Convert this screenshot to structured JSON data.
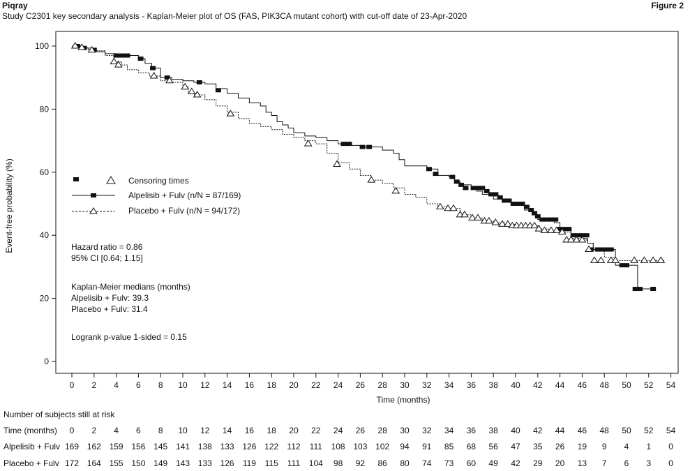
{
  "header": {
    "product": "Piqray",
    "subtitle": "Study C2301 key secondary analysis - Kaplan-Meier plot of OS (FAS, PIK3CA mutant cohort) with cut-off date of 23-Apr-2020",
    "figure_label": "Figure 2"
  },
  "chart_data": {
    "type": "line",
    "title": "",
    "xlabel": "Time (months)",
    "ylabel": "Event-free probability (%)",
    "xlim": [
      0,
      54
    ],
    "ylim": [
      0,
      100
    ],
    "x_ticks": [
      "0",
      "2",
      "4",
      "6",
      "8",
      "10",
      "12",
      "14",
      "16",
      "18",
      "20",
      "22",
      "24",
      "26",
      "28",
      "30",
      "32",
      "34",
      "36",
      "38",
      "40",
      "42",
      "44",
      "46",
      "48",
      "50",
      "52",
      "54"
    ],
    "y_ticks": [
      "0",
      "20",
      "40",
      "60",
      "80",
      "100"
    ],
    "legend": {
      "position": "left",
      "censor_label": "Censoring times",
      "entries": [
        "Alpelisib + Fulv (n/N = 87/169)",
        "Placebo + Fulv (n/N = 94/172)"
      ]
    },
    "annotations": {
      "hr": "Hazard ratio = 0.86",
      "ci": "95% CI [0.64; 1.15]",
      "median_title": "Kaplan-Meier medians (months)",
      "median_alp": "Alpelisib + Fulv: 39.3",
      "median_pla": "Placebo + Fulv: 31.4",
      "logrank": "Logrank p-value 1-sided = 0.15"
    },
    "series": [
      {
        "name": "Alpelisib + Fulv (n/N = 87/169)",
        "style": "solid",
        "marker": "filled-square",
        "x": [
          0,
          0.4,
          1.0,
          1.5,
          2.2,
          3.0,
          4.0,
          5.5,
          6.0,
          6.6,
          7.2,
          8.0,
          9.0,
          10.0,
          11.0,
          12.0,
          13.0,
          14.0,
          15.0,
          16.0,
          17.0,
          17.5,
          18.0,
          18.5,
          19.0,
          19.5,
          20.0,
          21.0,
          22.0,
          23.0,
          24.0,
          25.0,
          26.0,
          27.0,
          28.0,
          29.0,
          29.5,
          30.0,
          31.0,
          32.0,
          33.0,
          34.0,
          34.5,
          35.0,
          36.0,
          36.5,
          37.0,
          38.0,
          39.0,
          40.0,
          40.8,
          41.5,
          42.0,
          42.5,
          43.0,
          43.5,
          44.0,
          45.0,
          46.0,
          46.5,
          47.0,
          48.0,
          48.5,
          49.0,
          50.0,
          50.5,
          51.0,
          52.0,
          52.4
        ],
        "y": [
          100,
          100,
          99.4,
          98.8,
          98.2,
          97.6,
          97.0,
          97.0,
          96.0,
          94.5,
          93.0,
          90.0,
          89.5,
          89.0,
          88.5,
          88.0,
          86.5,
          85.0,
          83.5,
          82.0,
          81.0,
          79.0,
          78.0,
          76.0,
          75.0,
          74.0,
          72.5,
          71.5,
          71.0,
          70.0,
          69.0,
          68.5,
          68.0,
          68.0,
          67.0,
          66.0,
          64.0,
          62.0,
          62.0,
          61.0,
          59.0,
          58.5,
          57.0,
          56.0,
          55.0,
          54.0,
          53.0,
          51.5,
          50.5,
          49.5,
          48.0,
          46.5,
          45.0,
          45.0,
          45.0,
          44.0,
          42.0,
          40.0,
          39.0,
          37.5,
          35.5,
          35.5,
          35.5,
          30.5,
          30.5,
          30.5,
          23.0,
          23.0,
          23.0
        ]
      },
      {
        "name": "Placebo + Fulv (n/N = 94/172)",
        "style": "dashed",
        "marker": "open-triangle",
        "x": [
          0,
          0.5,
          1.0,
          2.0,
          3.0,
          3.8,
          4.5,
          5.0,
          6.0,
          7.0,
          8.0,
          9.0,
          10.0,
          10.5,
          11.0,
          12.0,
          13.0,
          14.0,
          15.0,
          16.0,
          17.0,
          18.0,
          19.0,
          20.0,
          21.0,
          22.0,
          23.0,
          24.0,
          25.0,
          26.0,
          27.0,
          28.0,
          29.0,
          30.0,
          31.0,
          32.0,
          33.0,
          34.0,
          35.0,
          36.0,
          37.0,
          38.0,
          39.0,
          40.0,
          41.0,
          42.0,
          43.0,
          44.0,
          45.0,
          46.0,
          46.5,
          47.0,
          48.0,
          49.0,
          50.0,
          51.0,
          52.0,
          53.0,
          53.4
        ],
        "y": [
          100,
          100,
          99.4,
          98.5,
          97.0,
          95.0,
          94.0,
          92.5,
          91.5,
          90.5,
          89.0,
          88.5,
          87.0,
          85.5,
          84.5,
          83.0,
          81.0,
          79.0,
          77.0,
          75.5,
          74.5,
          73.5,
          72.0,
          71.0,
          70.0,
          69.0,
          66.0,
          63.0,
          61.0,
          59.0,
          57.5,
          56.5,
          55.0,
          53.0,
          52.0,
          50.0,
          49.0,
          48.5,
          46.5,
          45.5,
          44.5,
          44.0,
          43.5,
          43.0,
          43.0,
          42.0,
          41.5,
          41.0,
          39.0,
          38.5,
          37.5,
          36.0,
          33.0,
          32.0,
          32.0,
          32.0,
          32.0,
          32.0,
          32.0
        ]
      }
    ],
    "censor": [
      {
        "series": "Alpelisib + Fulv",
        "x": [
          0.5,
          1.1,
          2.0,
          4.0,
          4.5,
          5.0,
          6.2,
          7.3,
          8.6,
          11.5,
          13.2,
          24.5,
          25.0,
          26.2,
          26.8,
          32.2,
          32.8,
          34.3,
          34.7,
          35.1,
          35.5,
          36.2,
          36.6,
          37.0,
          37.4,
          37.8,
          38.2,
          38.6,
          39.0,
          39.4,
          39.8,
          40.2,
          40.6,
          41.0,
          41.4,
          41.7,
          42.0,
          42.4,
          42.8,
          43.2,
          43.6,
          44.0,
          44.4,
          44.8,
          45.2,
          45.6,
          46.0,
          46.4,
          46.8,
          47.4,
          47.8,
          48.2,
          48.6,
          49.6,
          50.0,
          50.8,
          51.2,
          52.4
        ],
        "y": [
          100,
          99.4,
          98.8,
          97.0,
          97.0,
          97.0,
          96.0,
          93.0,
          90.0,
          88.5,
          86.0,
          69.0,
          69.0,
          68.0,
          68.0,
          61.0,
          59.5,
          58.5,
          57.0,
          56.0,
          55.0,
          55.0,
          55.0,
          55.0,
          54.0,
          53.0,
          53.0,
          52.0,
          51.0,
          51.0,
          50.0,
          50.0,
          50.0,
          49.0,
          48.0,
          47.0,
          46.0,
          45.0,
          45.0,
          45.0,
          45.0,
          42.0,
          42.0,
          42.0,
          40.0,
          40.0,
          40.0,
          40.0,
          35.5,
          35.5,
          35.5,
          35.5,
          35.5,
          30.5,
          30.5,
          23.0,
          23.0,
          23.0
        ]
      },
      {
        "series": "Placebo + Fulv",
        "x": [
          0.3,
          0.9,
          1.8,
          3.8,
          4.2,
          7.4,
          8.8,
          10.2,
          10.8,
          11.3,
          14.3,
          21.3,
          23.9,
          27.0,
          29.2,
          33.2,
          33.9,
          34.4,
          35.0,
          35.4,
          36.1,
          36.6,
          37.2,
          37.6,
          38.2,
          38.8,
          39.3,
          39.7,
          40.1,
          40.5,
          40.9,
          41.3,
          41.7,
          42.1,
          42.6,
          43.2,
          43.7,
          44.2,
          44.6,
          45.0,
          45.5,
          46.0,
          46.6,
          47.1,
          47.7,
          48.6,
          49.0,
          50.7,
          51.6,
          52.4,
          53.1
        ],
        "y": [
          100,
          99.5,
          98.7,
          95.0,
          94.0,
          90.5,
          89.0,
          87.0,
          85.5,
          84.5,
          78.5,
          69.0,
          62.5,
          57.5,
          54.0,
          49.0,
          48.5,
          48.5,
          46.5,
          46.5,
          45.5,
          45.5,
          44.5,
          44.5,
          44.0,
          43.5,
          43.5,
          43.0,
          43.0,
          43.0,
          43.0,
          43.0,
          43.0,
          42.0,
          41.5,
          41.5,
          41.5,
          41.0,
          38.5,
          38.5,
          38.5,
          38.5,
          35.5,
          32.0,
          32.0,
          32.0,
          32.0,
          32.0,
          32.0,
          32.0,
          32.0
        ]
      }
    ]
  },
  "risk_table": {
    "title": "Number of subjects still at risk",
    "time_label": "Time (months)",
    "times": [
      "0",
      "2",
      "4",
      "6",
      "8",
      "10",
      "12",
      "14",
      "16",
      "18",
      "20",
      "22",
      "24",
      "26",
      "28",
      "30",
      "32",
      "34",
      "36",
      "38",
      "40",
      "42",
      "44",
      "46",
      "48",
      "50",
      "52",
      "54"
    ],
    "rows": [
      {
        "label": "Alpelisib + Fulv",
        "values": [
          "169",
          "162",
          "159",
          "156",
          "145",
          "141",
          "138",
          "133",
          "126",
          "122",
          "112",
          "111",
          "108",
          "103",
          "102",
          "94",
          "91",
          "85",
          "68",
          "56",
          "47",
          "35",
          "26",
          "19",
          "9",
          "4",
          "1",
          "0"
        ]
      },
      {
        "label": "Placebo + Fulv",
        "values": [
          "172",
          "164",
          "155",
          "150",
          "149",
          "143",
          "133",
          "126",
          "119",
          "115",
          "111",
          "104",
          "98",
          "92",
          "86",
          "80",
          "74",
          "73",
          "60",
          "49",
          "42",
          "29",
          "20",
          "13",
          "7",
          "6",
          "3",
          "0"
        ]
      }
    ]
  }
}
